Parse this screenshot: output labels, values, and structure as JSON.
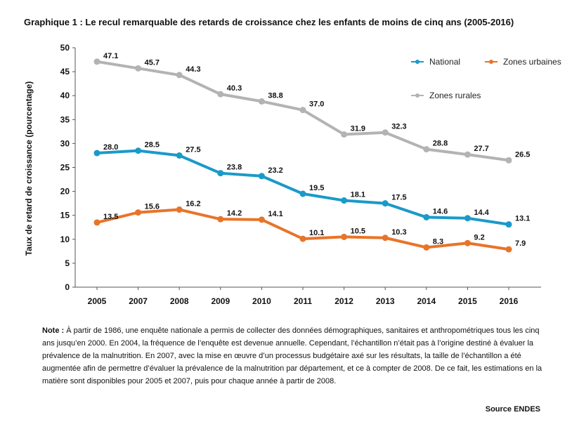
{
  "chart_data": {
    "type": "line",
    "title": "Graphique 1 : Le recul remarquable des retards de croissance chez les enfants de moins de cinq ans (2005-2016)",
    "xlabel": "",
    "ylabel": "Taux de retard de croissance (pourcentage)",
    "categories": [
      "2005",
      "2007",
      "2008",
      "2009",
      "2010",
      "2011",
      "2012",
      "2013",
      "2014",
      "2015",
      "2016"
    ],
    "ylim": [
      0,
      50
    ],
    "yticks": [
      0,
      5,
      10,
      15,
      20,
      25,
      30,
      35,
      40,
      45,
      50
    ],
    "grid": false,
    "legend_position": "top-right",
    "series": [
      {
        "name": "National",
        "color": "#1a9ac9",
        "values": [
          28.0,
          28.5,
          27.5,
          23.8,
          23.2,
          19.5,
          18.1,
          17.5,
          14.6,
          14.4,
          13.1
        ],
        "labels": [
          "28.0",
          "28.5",
          "27.5",
          "23.8",
          "23.2",
          "19.5",
          "18.1",
          "17.5",
          "14.6",
          "14.4",
          "13.1"
        ]
      },
      {
        "name": "Zones urbaines",
        "color": "#e8742a",
        "values": [
          13.5,
          15.6,
          16.2,
          14.2,
          14.1,
          10.1,
          10.5,
          10.3,
          8.3,
          9.2,
          7.9
        ],
        "labels": [
          "13.5",
          "15.6",
          "16.2",
          "14.2",
          "14.1",
          "10.1",
          "10.5",
          "10.3",
          "8.3",
          "9.2",
          "7.9"
        ]
      },
      {
        "name": "Zones rurales",
        "color": "#b3b3b3",
        "values": [
          47.1,
          45.7,
          44.3,
          40.3,
          38.8,
          37.0,
          31.9,
          32.3,
          28.8,
          27.7,
          26.5
        ],
        "labels": [
          "47.1",
          "45.7",
          "44.3",
          "40.3",
          "38.8",
          "37.0",
          "31.9",
          "32.3",
          "28.8",
          "27.7",
          "26.5"
        ]
      }
    ],
    "legend_marker_color": "#666666"
  },
  "note": {
    "label": "Note :",
    "text": "À partir de 1986, une enquête nationale a permis de collecter des données démographiques, sanitaires et anthropométriques tous les cinq ans jusqu’en 2000. En 2004, la fréquence de l’enquête est devenue annuelle. Cependant, l’échantillon n’était pas à l’origine destiné à évaluer la prévalence de la malnutrition. En 2007, avec la mise en œuvre d’un processus budgétaire axé sur les résultats, la taille de l’échantillon a été augmentée afin de permettre d’évaluer la prévalence de la malnutrition par département, et ce à compter de 2008. De ce fait, les estimations en la matière sont disponibles pour 2005 et 2007, puis pour chaque année à partir de 2008."
  },
  "source": "Source ENDES"
}
